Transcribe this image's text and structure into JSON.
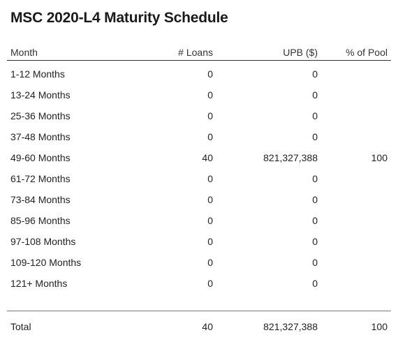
{
  "title": "MSC 2020-L4 Maturity Schedule",
  "columns": {
    "month": "Month",
    "loans": "# Loans",
    "upb": "UPB ($)",
    "pool": "% of Pool"
  },
  "rows": [
    {
      "month": "1-12 Months",
      "loans": "0",
      "upb": "0",
      "pool": ""
    },
    {
      "month": "13-24 Months",
      "loans": "0",
      "upb": "0",
      "pool": ""
    },
    {
      "month": "25-36 Months",
      "loans": "0",
      "upb": "0",
      "pool": ""
    },
    {
      "month": "37-48 Months",
      "loans": "0",
      "upb": "0",
      "pool": ""
    },
    {
      "month": "49-60 Months",
      "loans": "40",
      "upb": "821,327,388",
      "pool": "100"
    },
    {
      "month": "61-72 Months",
      "loans": "0",
      "upb": "0",
      "pool": ""
    },
    {
      "month": "73-84 Months",
      "loans": "0",
      "upb": "0",
      "pool": ""
    },
    {
      "month": "85-96 Months",
      "loans": "0",
      "upb": "0",
      "pool": ""
    },
    {
      "month": "97-108 Months",
      "loans": "0",
      "upb": "0",
      "pool": ""
    },
    {
      "month": "109-120 Months",
      "loans": "0",
      "upb": "0",
      "pool": ""
    },
    {
      "month": "121+ Months",
      "loans": "0",
      "upb": "0",
      "pool": ""
    }
  ],
  "total": {
    "month": "Total",
    "loans": "40",
    "upb": "821,327,388",
    "pool": "100"
  }
}
